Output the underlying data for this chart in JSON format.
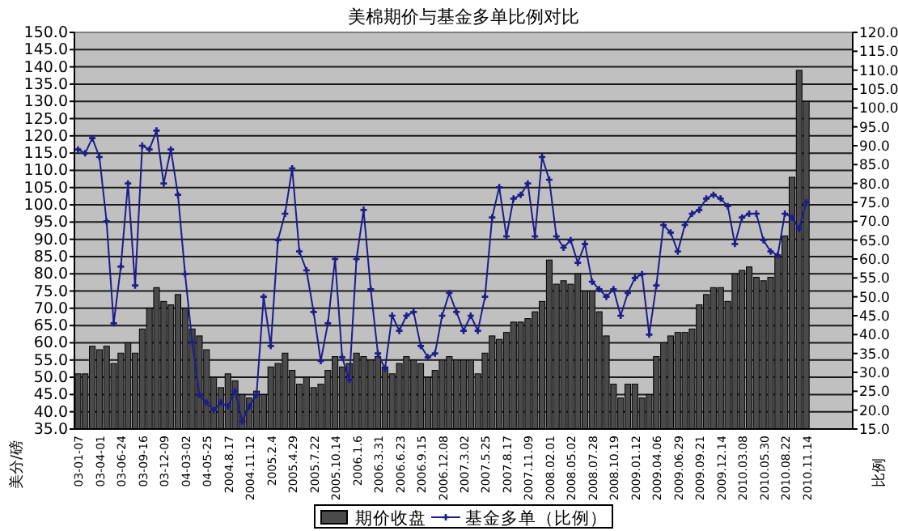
{
  "chart_data": {
    "type": "bar",
    "title": "美棉期价与基金多单比例对比",
    "ylabel": "美分/磅",
    "y2label": "比例",
    "categories": [
      "03-01-07",
      null,
      null,
      "03-04-01",
      null,
      null,
      "03-06-24",
      null,
      null,
      "03-09-16",
      null,
      null,
      "03-12-09",
      null,
      null,
      "04-03-02",
      null,
      null,
      "04-05-25",
      null,
      null,
      "2004.8.17",
      null,
      null,
      "2004.11.12",
      null,
      null,
      "2005.2.4",
      null,
      null,
      "2005.4.29",
      null,
      null,
      "2005.7.22",
      null,
      null,
      "2005.10.14",
      null,
      null,
      "2006.1.6",
      null,
      null,
      "2006.3.31",
      null,
      null,
      "2006.6.23",
      null,
      null,
      "2006.9.15",
      null,
      null,
      "2006.12.08",
      null,
      null,
      "2007.3.02",
      null,
      null,
      "2007.5.25",
      null,
      null,
      "2007.8.17",
      null,
      null,
      "2007.11.09",
      null,
      null,
      "2008.02.01",
      null,
      null,
      "2008.05.02",
      null,
      null,
      "2008.07.28",
      null,
      null,
      "2008.10.19",
      null,
      null,
      "2009.01.12",
      null,
      null,
      "2009.04.06",
      null,
      null,
      "2009.06.29",
      null,
      null,
      "2009.09.21",
      null,
      null,
      "2009.12.14",
      null,
      null,
      "2010.03.08",
      null,
      null,
      "2010.05.30",
      null,
      null,
      "2010.08.22",
      null,
      null,
      "2010.11.14",
      null,
      null,
      null,
      null,
      null,
      null
    ],
    "series": [
      {
        "name": "期价收盘",
        "color": "#4a4a4a",
        "values": [
          51,
          51,
          59,
          58,
          59,
          54,
          57,
          60,
          57,
          64,
          70,
          76,
          72,
          71,
          74,
          70,
          64,
          62,
          58,
          50,
          47,
          51,
          49,
          45,
          44,
          46,
          45,
          53,
          54,
          57,
          52,
          48,
          50,
          47,
          48,
          52,
          56,
          53,
          54,
          57,
          56,
          55,
          56,
          53,
          51,
          54,
          56,
          55,
          54,
          50,
          52,
          55,
          56,
          55,
          55,
          55,
          51,
          57,
          62,
          61,
          63,
          66,
          66,
          67,
          69,
          72,
          84,
          77,
          78,
          77,
          80,
          75,
          75,
          69,
          62,
          48,
          44,
          48,
          48,
          44,
          45,
          56,
          60,
          62,
          63,
          63,
          64,
          71,
          74,
          76,
          76,
          72,
          80,
          81,
          82,
          79,
          78,
          79,
          85,
          91,
          108,
          139,
          130,
          null,
          null,
          null,
          null,
          null,
          null
        ]
      },
      {
        "name": "基金多单（比例）",
        "type": "line",
        "axis": "y2",
        "marker": "cross",
        "color": "#1c1c8c",
        "values": [
          89,
          88,
          92,
          87,
          70,
          43,
          58,
          80,
          53,
          90,
          89,
          94,
          80,
          89,
          77,
          56,
          38,
          24,
          22,
          20,
          22,
          21,
          25,
          17,
          21,
          24,
          50,
          37,
          65,
          72,
          84,
          62,
          57,
          46,
          33,
          43,
          60,
          34,
          28,
          60,
          73,
          52,
          35,
          31,
          45,
          41,
          45,
          46,
          37,
          34,
          35,
          45,
          51,
          46,
          41,
          45,
          41,
          50,
          71,
          79,
          66,
          76,
          77,
          80,
          66,
          87,
          81,
          66,
          63,
          65,
          59,
          64,
          54,
          52,
          50,
          52,
          45,
          51,
          55,
          56,
          40,
          53,
          69,
          67,
          62,
          69,
          72,
          73,
          76,
          77,
          76,
          74,
          64,
          71,
          72,
          72,
          65,
          62,
          61,
          72,
          71,
          68,
          75,
          null,
          null,
          null,
          null,
          null,
          null
        ]
      }
    ],
    "ylim": [
      35,
      150
    ],
    "yticks": [
      {
        "value": 35,
        "label": "35.0"
      },
      {
        "value": 40,
        "label": "40.0"
      },
      {
        "value": 45,
        "label": "45.0"
      },
      {
        "value": 50,
        "label": "50.0"
      },
      {
        "value": 55,
        "label": "55.0"
      },
      {
        "value": 60,
        "label": "60.0"
      },
      {
        "value": 65,
        "label": "65.0"
      },
      {
        "value": 70,
        "label": "70.0"
      },
      {
        "value": 75,
        "label": "75.0"
      },
      {
        "value": 80,
        "label": "80.0"
      },
      {
        "value": 85,
        "label": "85.0"
      },
      {
        "value": 90,
        "label": "90.0"
      },
      {
        "value": 95,
        "label": "95.0"
      },
      {
        "value": 100,
        "label": "100.0"
      },
      {
        "value": 105,
        "label": "105.0"
      },
      {
        "value": 110,
        "label": "110.0"
      },
      {
        "value": 115,
        "label": "115.0"
      },
      {
        "value": 120,
        "label": "120.0"
      },
      {
        "value": 125,
        "label": "125.0"
      },
      {
        "value": 130,
        "label": "130.0"
      },
      {
        "value": 135,
        "label": "135.0"
      },
      {
        "value": 140,
        "label": "140.0"
      },
      {
        "value": 145,
        "label": "145.0"
      },
      {
        "value": 150,
        "label": "150.0"
      }
    ],
    "y2lim": [
      15,
      120
    ],
    "y2ticks": [
      {
        "value": 15,
        "label": "15.0"
      },
      {
        "value": 20,
        "label": "20.0"
      },
      {
        "value": 25,
        "label": "25.0"
      },
      {
        "value": 30,
        "label": "30.0"
      },
      {
        "value": 35,
        "label": "35.0"
      },
      {
        "value": 40,
        "label": "40.0"
      },
      {
        "value": 45,
        "label": "45.0"
      },
      {
        "value": 50,
        "label": "50.0"
      },
      {
        "value": 55,
        "label": "55.0"
      },
      {
        "value": 60,
        "label": "60.0"
      },
      {
        "value": 65,
        "label": "65.0"
      },
      {
        "value": 70,
        "label": "70.0"
      },
      {
        "value": 75,
        "label": "75.0"
      },
      {
        "value": 80,
        "label": "80.0"
      },
      {
        "value": 85,
        "label": "85.0"
      },
      {
        "value": 90,
        "label": "90.0"
      },
      {
        "value": 95,
        "label": "95.0"
      },
      {
        "value": 100,
        "label": "100.0"
      },
      {
        "value": 105,
        "label": "105.0"
      },
      {
        "value": 110,
        "label": "110.0"
      },
      {
        "value": 115,
        "label": "115.0"
      },
      {
        "value": 120,
        "label": "120.0"
      }
    ],
    "grid": "y",
    "legend": "bottom"
  }
}
